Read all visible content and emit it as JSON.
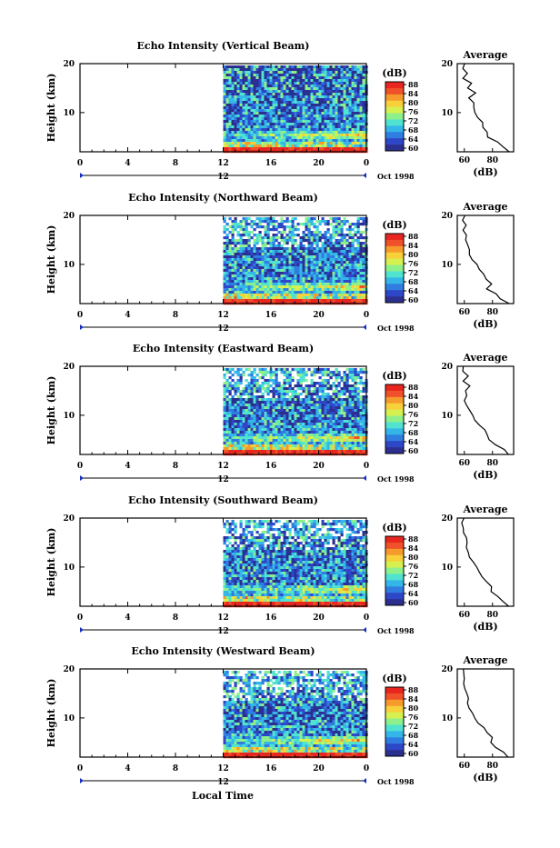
{
  "figure": {
    "time_axis_label": "Local Time",
    "date_label": "Oct 1998",
    "day_marker": "12"
  },
  "colorbar": {
    "unit_label": "(dB)",
    "ticks": [
      "88",
      "84",
      "80",
      "76",
      "72",
      "68",
      "64",
      "60"
    ],
    "colors": [
      "#2b2f8f",
      "#2e46c8",
      "#2f7de0",
      "#34b7e8",
      "#4fe3d0",
      "#8ef08a",
      "#d6f050",
      "#f7d03a",
      "#f79a2c",
      "#f0502a",
      "#e8261f"
    ]
  },
  "chart_data": [
    {
      "type": "heatmap",
      "title": "Echo Intensity (Vertical Beam)",
      "ylabel": "Height (km)",
      "xlim": [
        0,
        24
      ],
      "ylim": [
        2,
        20
      ],
      "x_ticks": [
        "0",
        "4",
        "8",
        "12",
        "16",
        "20",
        "0"
      ],
      "y_ticks": [
        "20",
        "10"
      ],
      "data_start_hour": 12,
      "cbar_range_db": [
        60,
        88
      ],
      "avg_profile": {
        "title": "Average",
        "xlabel": "(dB)",
        "x_ticks": [
          "60",
          "80"
        ],
        "xlim": [
          55,
          95
        ],
        "height_km": [
          2,
          3,
          4,
          5,
          6,
          7,
          8,
          9,
          10,
          11,
          12,
          13,
          14,
          15,
          16,
          17,
          18,
          19,
          20
        ],
        "db": [
          92,
          88,
          84,
          77,
          76,
          73,
          72,
          70,
          67,
          66,
          66,
          64,
          68,
          62,
          66,
          60,
          63,
          59,
          60
        ]
      }
    },
    {
      "type": "heatmap",
      "title": "Echo Intensity (Northward Beam)",
      "ylabel": "Height (km)",
      "xlim": [
        0,
        24
      ],
      "ylim": [
        2,
        20
      ],
      "x_ticks": [
        "0",
        "4",
        "8",
        "12",
        "16",
        "20",
        "0"
      ],
      "y_ticks": [
        "20",
        "10"
      ],
      "data_start_hour": 12,
      "cbar_range_db": [
        60,
        88
      ],
      "avg_profile": {
        "title": "Average",
        "xlabel": "(dB)",
        "x_ticks": [
          "60",
          "80"
        ],
        "xlim": [
          55,
          95
        ],
        "height_km": [
          2,
          3,
          4,
          5,
          6,
          7,
          8,
          9,
          10,
          11,
          12,
          13,
          14,
          15,
          16,
          17,
          18,
          19,
          20
        ],
        "db": [
          92,
          86,
          82,
          76,
          79,
          76,
          74,
          71,
          68,
          66,
          64,
          63,
          62,
          61,
          62,
          60,
          61,
          59,
          60
        ]
      }
    },
    {
      "type": "heatmap",
      "title": "Echo Intensity (Eastward Beam)",
      "ylabel": "Height (km)",
      "xlim": [
        0,
        24
      ],
      "ylim": [
        2,
        20
      ],
      "x_ticks": [
        "0",
        "4",
        "8",
        "12",
        "16",
        "20",
        "0"
      ],
      "y_ticks": [
        "20",
        "10"
      ],
      "data_start_hour": 12,
      "cbar_range_db": [
        60,
        88
      ],
      "avg_profile": {
        "title": "Average",
        "xlabel": "(dB)",
        "x_ticks": [
          "60",
          "80"
        ],
        "xlim": [
          55,
          95
        ],
        "height_km": [
          2,
          3,
          4,
          5,
          6,
          7,
          8,
          9,
          10,
          11,
          12,
          13,
          14,
          15,
          16,
          17,
          18,
          19,
          20
        ],
        "db": [
          92,
          88,
          82,
          78,
          76,
          74,
          71,
          68,
          66,
          64,
          62,
          61,
          62,
          61,
          63,
          60,
          62,
          59,
          60
        ]
      }
    },
    {
      "type": "heatmap",
      "title": "Echo Intensity (Southward Beam)",
      "ylabel": "Height (km)",
      "xlim": [
        0,
        24
      ],
      "ylim": [
        2,
        20
      ],
      "x_ticks": [
        "0",
        "4",
        "8",
        "12",
        "16",
        "20",
        "0"
      ],
      "y_ticks": [
        "20",
        "10"
      ],
      "data_start_hour": 12,
      "cbar_range_db": [
        60,
        88
      ],
      "avg_profile": {
        "title": "Average",
        "xlabel": "(dB)",
        "x_ticks": [
          "60",
          "80"
        ],
        "xlim": [
          55,
          95
        ],
        "height_km": [
          2,
          3,
          4,
          5,
          6,
          7,
          8,
          9,
          10,
          11,
          12,
          13,
          14,
          15,
          16,
          17,
          18,
          19,
          20
        ],
        "db": [
          92,
          87,
          83,
          78,
          79,
          75,
          72,
          70,
          68,
          66,
          64,
          63,
          62,
          61,
          61,
          60,
          60,
          59,
          60
        ]
      }
    },
    {
      "type": "heatmap",
      "title": "Echo Intensity (Westward Beam)",
      "ylabel": "Height (km)",
      "xlabel": "Local Time",
      "xlim": [
        0,
        24
      ],
      "ylim": [
        2,
        20
      ],
      "x_ticks": [
        "0",
        "4",
        "8",
        "12",
        "16",
        "20",
        "0"
      ],
      "y_ticks": [
        "20",
        "10"
      ],
      "data_start_hour": 12,
      "cbar_range_db": [
        60,
        88
      ],
      "avg_profile": {
        "title": "Average",
        "xlabel": "(dB)",
        "x_ticks": [
          "60",
          "80"
        ],
        "xlim": [
          55,
          95
        ],
        "height_km": [
          2,
          3,
          4,
          5,
          6,
          7,
          8,
          9,
          10,
          11,
          12,
          13,
          14,
          15,
          16,
          17,
          18,
          19,
          20
        ],
        "db": [
          92,
          88,
          83,
          79,
          79,
          76,
          73,
          70,
          68,
          66,
          64,
          63,
          62,
          61,
          61,
          60,
          60,
          59,
          60
        ]
      }
    }
  ]
}
